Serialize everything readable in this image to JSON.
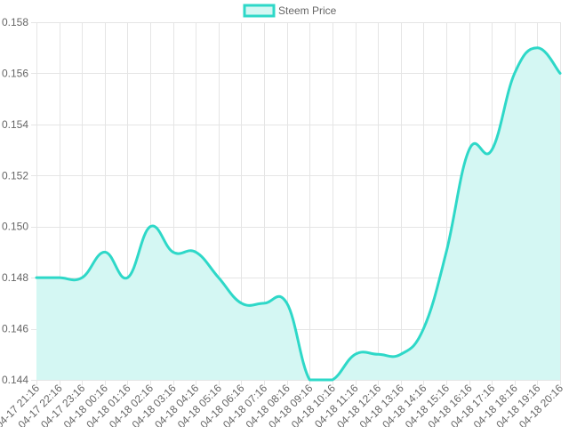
{
  "chart_data": {
    "type": "area",
    "title": "",
    "xlabel": "",
    "ylabel": "",
    "legend_position": "top",
    "grid": true,
    "ylim": [
      0.144,
      0.158
    ],
    "y_ticks": [
      0.144,
      0.146,
      0.148,
      0.15,
      0.152,
      0.154,
      0.156,
      0.158
    ],
    "y_tick_labels": [
      "0.144",
      "0.146",
      "0.148",
      "0.150",
      "0.152",
      "0.154",
      "0.156",
      "0.158"
    ],
    "categories": [
      "04-17 21:16",
      "04-17 22:16",
      "04-17 23:16",
      "04-18 00:16",
      "04-18 01:16",
      "04-18 02:16",
      "04-18 03:16",
      "04-18 04:16",
      "04-18 05:16",
      "04-18 06:16",
      "04-18 07:16",
      "04-18 08:16",
      "04-18 09:16",
      "04-18 10:16",
      "04-18 11:16",
      "04-18 12:16",
      "04-18 13:16",
      "04-18 14:16",
      "04-18 15:16",
      "04-18 16:16",
      "04-18 17:16",
      "04-18 18:16",
      "04-18 19:16",
      "04-18 20:16"
    ],
    "series": [
      {
        "name": "Steem Price",
        "color": "#2ed8c8",
        "fill": "#d4f7f3",
        "values": [
          0.148,
          0.148,
          0.148,
          0.149,
          0.148,
          0.15,
          0.149,
          0.149,
          0.148,
          0.147,
          0.147,
          0.147,
          0.144,
          0.144,
          0.145,
          0.145,
          0.145,
          0.146,
          0.149,
          0.153,
          0.153,
          0.156,
          0.157,
          0.156
        ]
      }
    ]
  }
}
